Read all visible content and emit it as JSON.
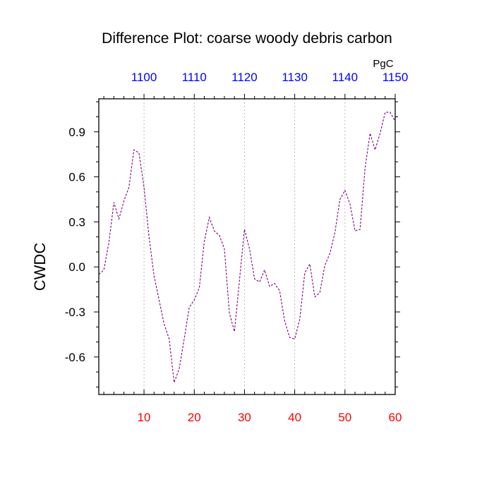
{
  "chart_data": {
    "type": "line",
    "title": "Difference Plot: coarse woody debris carbon",
    "ylabel": "CWDC",
    "top_axis_unit": "PgC",
    "xlim": [
      1,
      60
    ],
    "ylim": [
      -0.85,
      1.12
    ],
    "top_xlim": [
      1091,
      1150
    ],
    "x_ticks": [
      10,
      20,
      30,
      40,
      50,
      60
    ],
    "x_tick_labels": [
      "10",
      "20",
      "30",
      "40",
      "50",
      "60"
    ],
    "top_x_ticks": [
      1100,
      1110,
      1120,
      1130,
      1140,
      1150
    ],
    "top_x_tick_labels": [
      "1100",
      "1110",
      "1120",
      "1130",
      "1140",
      "1150"
    ],
    "y_ticks": [
      -0.6,
      -0.3,
      0.0,
      0.3,
      0.6,
      0.9
    ],
    "y_tick_labels": [
      "-0.6",
      "-0.3",
      "0.0",
      "0.3",
      "0.6",
      "0.9"
    ],
    "grid": "vertical dotted at major x ticks",
    "series": [
      {
        "x": [
          1,
          2,
          3,
          4,
          5,
          6,
          7,
          8,
          9,
          10,
          11,
          12,
          13,
          14,
          15,
          16,
          17,
          18,
          19,
          20,
          21,
          22,
          23,
          24,
          25,
          26,
          27,
          28,
          29,
          30,
          31,
          32,
          33,
          34,
          35,
          36,
          37,
          38,
          39,
          40,
          41,
          42,
          43,
          44,
          45,
          46,
          47,
          48,
          49,
          50,
          51,
          52,
          53,
          54,
          55,
          56,
          57,
          58,
          59,
          60
        ],
        "values": [
          -0.05,
          -0.02,
          0.16,
          0.43,
          0.32,
          0.44,
          0.53,
          0.78,
          0.76,
          0.53,
          0.2,
          -0.06,
          -0.22,
          -0.38,
          -0.48,
          -0.77,
          -0.68,
          -0.48,
          -0.27,
          -0.22,
          -0.14,
          0.17,
          0.33,
          0.24,
          0.21,
          0.12,
          -0.31,
          -0.43,
          -0.09,
          0.25,
          0.12,
          -0.08,
          -0.1,
          -0.02,
          -0.13,
          -0.11,
          -0.16,
          -0.36,
          -0.47,
          -0.48,
          -0.35,
          -0.04,
          0.02,
          -0.2,
          -0.17,
          0.01,
          0.09,
          0.23,
          0.45,
          0.51,
          0.42,
          0.24,
          0.25,
          0.66,
          0.89,
          0.78,
          0.89,
          1.03,
          1.03,
          0.97
        ],
        "color": "#800080",
        "style": "dashed"
      }
    ],
    "colors": {
      "series": "#800080",
      "bottom_tick_labels": "#ff0000",
      "top_tick_labels": "#0000ff",
      "axis": "#000000",
      "grid": "#aaaaaa"
    }
  }
}
